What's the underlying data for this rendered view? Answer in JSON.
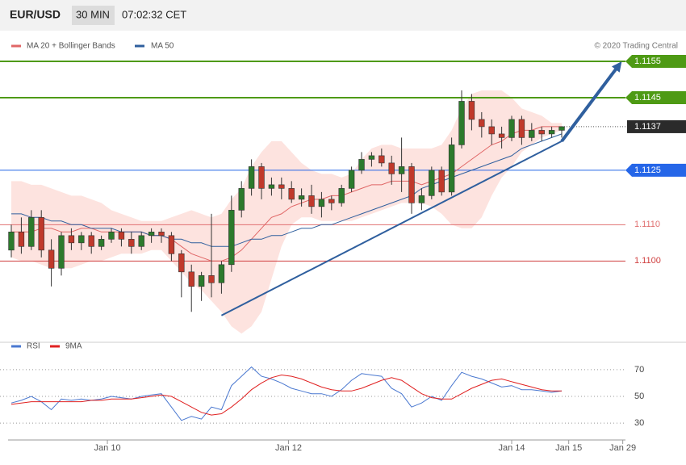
{
  "header": {
    "symbol": "EUR/USD",
    "timeframe": "30 MIN",
    "time": "07:02:32 CET"
  },
  "copyright": "© 2020 Trading Central",
  "chart_data": {
    "type": "candlestick",
    "xlim": [
      -1.13,
      61.37
    ],
    "xticks": [
      {
        "value": 9.6,
        "label": "Jan 10"
      },
      {
        "value": 27.7,
        "label": "Jan 12"
      },
      {
        "value": 50.0,
        "label": "Jan 14"
      },
      {
        "value": 55.7,
        "label": "Jan 15"
      },
      {
        "value": 61.1,
        "label": "Jan 29"
      }
    ],
    "ylim": [
      1.10785,
      1.1163
    ],
    "up_color": "#2c7a2c",
    "down_color": "#c0392b",
    "candles": {
      "open": [
        1.1103,
        1.1108,
        1.1104,
        1.1112,
        1.1103,
        1.1098,
        1.1107,
        1.1105,
        1.1107,
        1.1104,
        1.1106,
        1.1108,
        1.1106,
        1.1104,
        1.1107,
        1.1108,
        1.1107,
        1.1102,
        1.1097,
        1.1093,
        1.1096,
        1.1094,
        1.1099,
        1.1114,
        1.112,
        1.1126,
        1.112,
        1.1121,
        1.112,
        1.1117,
        1.1118,
        1.1115,
        1.1117,
        1.1116,
        1.112,
        1.1125,
        1.1128,
        1.1129,
        1.1127,
        1.1124,
        1.1126,
        1.1116,
        1.1118,
        1.1125,
        1.1119,
        1.1132,
        1.1144,
        1.1139,
        1.1137,
        1.1135,
        1.1134,
        1.1139,
        1.1134,
        1.1136,
        1.1135,
        1.1136
      ],
      "high": [
        1.111,
        1.1112,
        1.1114,
        1.1114,
        1.1106,
        1.1108,
        1.1109,
        1.1108,
        1.1108,
        1.1107,
        1.1109,
        1.1109,
        1.1108,
        1.1108,
        1.1109,
        1.1109,
        1.1108,
        1.1103,
        1.1099,
        1.1097,
        1.1113,
        1.11,
        1.1118,
        1.1122,
        1.1128,
        1.1127,
        1.1123,
        1.1123,
        1.1122,
        1.112,
        1.1121,
        1.1119,
        1.1118,
        1.1121,
        1.1126,
        1.113,
        1.113,
        1.1131,
        1.1129,
        1.1134,
        1.1127,
        1.112,
        1.1126,
        1.1126,
        1.1134,
        1.1147,
        1.1146,
        1.1141,
        1.1139,
        1.1137,
        1.114,
        1.114,
        1.1138,
        1.1137,
        1.1137,
        1.1137
      ],
      "low": [
        1.1101,
        1.1102,
        1.1103,
        1.1101,
        1.1093,
        1.1096,
        1.1103,
        1.1103,
        1.1102,
        1.1103,
        1.1105,
        1.1104,
        1.1102,
        1.1103,
        1.1105,
        1.1105,
        1.11,
        1.109,
        1.1086,
        1.1089,
        1.109,
        1.1091,
        1.1097,
        1.1112,
        1.1118,
        1.1117,
        1.1118,
        1.1117,
        1.1116,
        1.1115,
        1.1113,
        1.1112,
        1.1114,
        1.1115,
        1.1119,
        1.1124,
        1.1126,
        1.1126,
        1.1121,
        1.1119,
        1.1113,
        1.1114,
        1.1117,
        1.1118,
        1.1118,
        1.1131,
        1.1136,
        1.1134,
        1.1132,
        1.1131,
        1.1133,
        1.1132,
        1.1133,
        1.1133,
        1.1134,
        1.1134
      ],
      "close": [
        1.1108,
        1.1104,
        1.1112,
        1.1103,
        1.1098,
        1.1107,
        1.1105,
        1.1107,
        1.1104,
        1.1106,
        1.1108,
        1.1106,
        1.1104,
        1.1107,
        1.1108,
        1.1107,
        1.1102,
        1.1097,
        1.1093,
        1.1096,
        1.1094,
        1.1099,
        1.1114,
        1.112,
        1.1126,
        1.112,
        1.1121,
        1.112,
        1.1117,
        1.1118,
        1.1115,
        1.1117,
        1.1116,
        1.112,
        1.1125,
        1.1128,
        1.1129,
        1.1127,
        1.1124,
        1.1126,
        1.1116,
        1.1118,
        1.1125,
        1.1119,
        1.1132,
        1.1144,
        1.1139,
        1.1137,
        1.1135,
        1.1134,
        1.1139,
        1.1134,
        1.1136,
        1.1135,
        1.1136,
        1.1137
      ]
    },
    "ma20": {
      "name": "MA 20 + Bollinger Bands",
      "color": "#e06666",
      "values": [
        1.1108,
        1.1108,
        1.1108,
        1.1109,
        1.1109,
        1.1108,
        1.1108,
        1.1109,
        1.1109,
        1.1108,
        1.1108,
        1.1108,
        1.1108,
        1.1108,
        1.1107,
        1.1107,
        1.1106,
        1.1104,
        1.1102,
        1.1101,
        1.11,
        1.11,
        1.1101,
        1.1103,
        1.1106,
        1.1109,
        1.1112,
        1.1113,
        1.1115,
        1.1116,
        1.1117,
        1.1117,
        1.1118,
        1.1118,
        1.1119,
        1.112,
        1.1121,
        1.1121,
        1.1122,
        1.1122,
        1.1122,
        1.1121,
        1.1122,
        1.1123,
        1.1124,
        1.1126,
        1.1128,
        1.113,
        1.1132,
        1.1133,
        1.1135,
        1.1136,
        1.1136,
        1.1137,
        1.1137,
        1.1137
      ]
    },
    "bollinger": {
      "fill": "#fde3df",
      "upper": [
        1.1122,
        1.1122,
        1.1121,
        1.1121,
        1.112,
        1.1119,
        1.1118,
        1.1118,
        1.1117,
        1.1116,
        1.1114,
        1.1113,
        1.1112,
        1.1111,
        1.1111,
        1.1111,
        1.1112,
        1.1113,
        1.1114,
        1.1113,
        1.1112,
        1.1113,
        1.1117,
        1.112,
        1.1126,
        1.113,
        1.1133,
        1.1133,
        1.113,
        1.1127,
        1.1125,
        1.1124,
        1.1124,
        1.1123,
        1.1124,
        1.1128,
        1.1131,
        1.1132,
        1.1132,
        1.1131,
        1.1131,
        1.1131,
        1.1131,
        1.1132,
        1.1136,
        1.1142,
        1.1146,
        1.1147,
        1.1147,
        1.1147,
        1.1145,
        1.1142,
        1.1141,
        1.114,
        1.1138,
        1.1138
      ],
      "lower": [
        1.1101,
        1.11,
        1.11,
        1.1099,
        1.1098,
        1.1098,
        1.1098,
        1.1099,
        1.11,
        1.11,
        1.1101,
        1.1102,
        1.1102,
        1.1102,
        1.1103,
        1.1103,
        1.11,
        1.1097,
        1.1094,
        1.1092,
        1.1089,
        1.1086,
        1.1082,
        1.108,
        1.1082,
        1.1086,
        1.1095,
        1.1104,
        1.111,
        1.1112,
        1.1112,
        1.1111,
        1.1111,
        1.1111,
        1.1111,
        1.1112,
        1.1113,
        1.1114,
        1.1115,
        1.1116,
        1.1116,
        1.1116,
        1.1115,
        1.1113,
        1.111,
        1.1109,
        1.1109,
        1.1112,
        1.1118,
        1.1123,
        1.1126,
        1.113,
        1.1132,
        1.1134,
        1.1135,
        1.1136
      ]
    },
    "ma50": {
      "name": "MA 50",
      "color": "#2f5f9e",
      "values": [
        1.1113,
        1.1113,
        1.1112,
        1.1112,
        1.1111,
        1.1111,
        1.111,
        1.111,
        1.1109,
        1.1109,
        1.1109,
        1.1108,
        1.1108,
        1.1108,
        1.1107,
        1.1107,
        1.1106,
        1.1106,
        1.1105,
        1.1105,
        1.1104,
        1.1104,
        1.1104,
        1.1105,
        1.1106,
        1.1106,
        1.1107,
        1.1107,
        1.1108,
        1.1109,
        1.1109,
        1.111,
        1.111,
        1.1111,
        1.1112,
        1.1113,
        1.1114,
        1.1115,
        1.1116,
        1.1117,
        1.1118,
        1.112,
        1.1121,
        1.1122,
        1.1123,
        1.1124,
        1.1125,
        1.1126,
        1.1127,
        1.1128,
        1.1129,
        1.1131,
        1.1132,
        1.1133,
        1.1134,
        1.1135
      ]
    },
    "trend_line": {
      "color": "#2f5f9e",
      "x": [
        21,
        55
      ],
      "values": [
        1.1085,
        1.1133
      ]
    },
    "trend_arrow": {
      "color": "#2f5f9e",
      "x": [
        55,
        61
      ],
      "values": [
        1.1133,
        1.1155
      ]
    },
    "levels": [
      {
        "value": 1.1155,
        "label": "1.1155",
        "color": "#4e9a14",
        "style": "badge"
      },
      {
        "value": 1.1145,
        "label": "1.1145",
        "color": "#4e9a14",
        "style": "badge"
      },
      {
        "value": 1.1137,
        "label": "1.1137",
        "color": "#2b2b2b",
        "style": "dotted"
      },
      {
        "value": 1.1125,
        "label": "1.1125",
        "color": "#2566e8",
        "style": "badge"
      },
      {
        "value": 1.111,
        "label": "1.1110",
        "color": "#e07070",
        "style": "plain"
      },
      {
        "value": 1.11,
        "label": "1.1100",
        "color": "#d04040",
        "style": "plain"
      }
    ],
    "rsi": {
      "ylim": [
        24,
        82
      ],
      "yticks": [
        30,
        50,
        70
      ],
      "series": [
        {
          "name": "RSI",
          "color": "#4a78d0",
          "values": [
            45,
            47,
            50,
            46,
            40,
            48,
            47,
            48,
            47,
            48,
            50,
            49,
            48,
            50,
            51,
            52,
            42,
            32,
            35,
            33,
            42,
            40,
            58,
            65,
            72,
            65,
            63,
            60,
            56,
            54,
            52,
            52,
            50,
            55,
            62,
            67,
            66,
            65,
            56,
            52,
            42,
            45,
            50,
            47,
            58,
            68,
            65,
            63,
            60,
            57,
            58,
            55,
            55,
            54,
            53,
            54
          ]
        },
        {
          "name": "9MA",
          "color": "#e02020",
          "values": [
            44,
            45,
            46,
            46,
            46,
            46,
            46,
            46,
            47,
            47,
            48,
            48,
            48,
            49,
            50,
            51,
            50,
            46,
            42,
            38,
            36,
            37,
            42,
            48,
            55,
            60,
            64,
            66,
            65,
            63,
            60,
            57,
            55,
            54,
            54,
            56,
            59,
            62,
            64,
            62,
            57,
            52,
            49,
            48,
            48,
            52,
            56,
            59,
            62,
            63,
            61,
            59,
            57,
            55,
            54,
            54
          ]
        }
      ]
    }
  }
}
